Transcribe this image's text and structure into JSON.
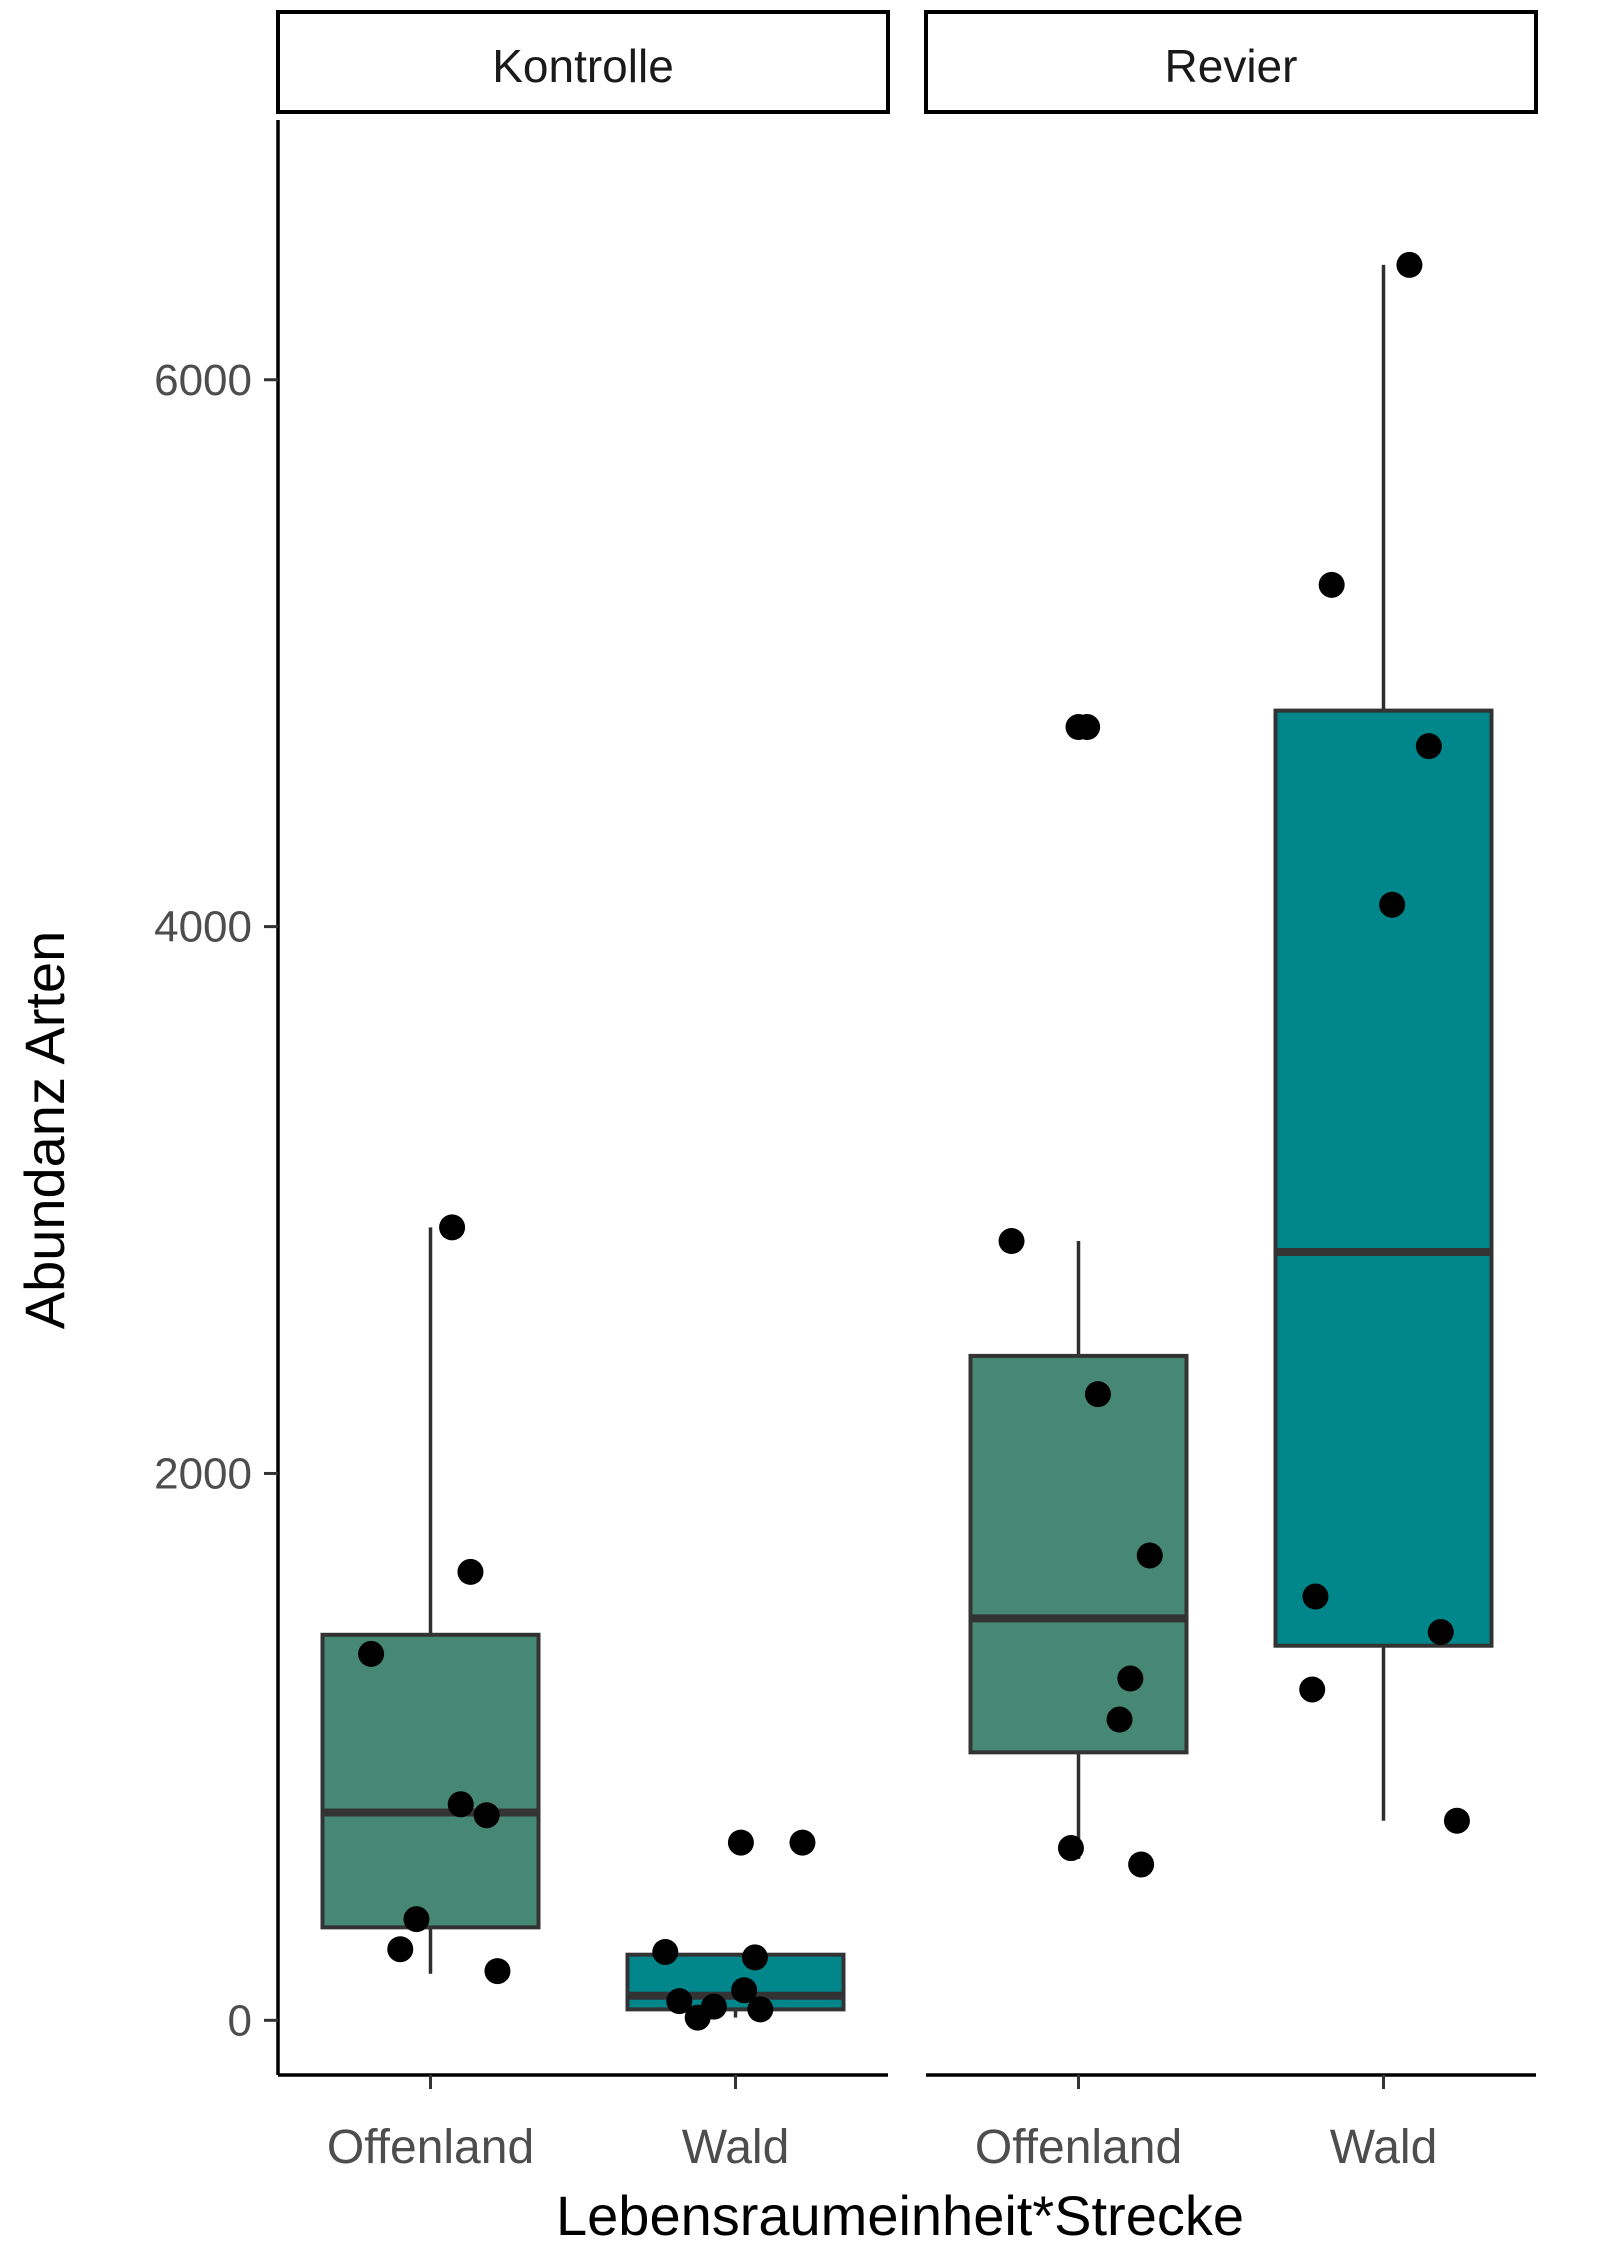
{
  "chart_data": {
    "type": "boxplot",
    "ylabel": "Abundanz Arten",
    "xlabel": "Lebensraumeinheit*Strecke",
    "ylim": [
      -200,
      6950
    ],
    "yticks": [
      0,
      2000,
      4000,
      6000
    ],
    "ytick_labels": [
      "0",
      "2000",
      "4000",
      "6000"
    ],
    "legend": "none",
    "grid": false,
    "colors": {
      "Offenland": "#468874",
      "Wald": "#00868B"
    },
    "panels": [
      {
        "name": "Kontrolle",
        "groups": [
          {
            "label": "Offenland",
            "box": {
              "q1": 340,
              "median": 760,
              "q3": 1410,
              "whisker_low": 170,
              "whisker_high": 2900
            },
            "points": [
              {
                "x": -0.55,
                "y": 1340
              },
              {
                "x": -0.28,
                "y": 260
              },
              {
                "x": -0.13,
                "y": 370
              },
              {
                "x": 0.2,
                "y": 2900
              },
              {
                "x": 0.28,
                "y": 790
              },
              {
                "x": 0.37,
                "y": 1640
              },
              {
                "x": 0.52,
                "y": 750
              },
              {
                "x": 0.62,
                "y": 180
              }
            ]
          },
          {
            "label": "Wald",
            "box": {
              "q1": 40,
              "median": 90,
              "q3": 240,
              "whisker_low": 10,
              "whisker_high": 240
            },
            "points": [
              {
                "x": -0.65,
                "y": 250
              },
              {
                "x": -0.52,
                "y": 70
              },
              {
                "x": -0.35,
                "y": 10
              },
              {
                "x": -0.2,
                "y": 50
              },
              {
                "x": 0.05,
                "y": 650
              },
              {
                "x": 0.08,
                "y": 110
              },
              {
                "x": 0.18,
                "y": 230
              },
              {
                "x": 0.23,
                "y": 40
              },
              {
                "x": 0.62,
                "y": 650
              }
            ]
          }
        ]
      },
      {
        "name": "Revier",
        "groups": [
          {
            "label": "Offenland",
            "box": {
              "q1": 980,
              "median": 1470,
              "q3": 2430,
              "whisker_low": 590,
              "whisker_high": 2850
            },
            "points": [
              {
                "x": -0.62,
                "y": 2850
              },
              {
                "x": -0.07,
                "y": 630
              },
              {
                "x": 0.0,
                "y": 4730
              },
              {
                "x": 0.08,
                "y": 4730
              },
              {
                "x": 0.18,
                "y": 2290
              },
              {
                "x": 0.48,
                "y": 1250
              },
              {
                "x": 0.38,
                "y": 1100
              },
              {
                "x": 0.58,
                "y": 570
              },
              {
                "x": 0.66,
                "y": 1700
              }
            ]
          },
          {
            "label": "Wald",
            "box": {
              "q1": 1370,
              "median": 2810,
              "q3": 4790,
              "whisker_low": 730,
              "whisker_high": 6420
            },
            "points": [
              {
                "x": -0.66,
                "y": 1210
              },
              {
                "x": -0.63,
                "y": 1550
              },
              {
                "x": -0.48,
                "y": 5250
              },
              {
                "x": 0.08,
                "y": 4080
              },
              {
                "x": 0.24,
                "y": 6420
              },
              {
                "x": 0.42,
                "y": 4660
              },
              {
                "x": 0.53,
                "y": 1420
              },
              {
                "x": 0.68,
                "y": 730
              }
            ]
          }
        ]
      }
    ]
  }
}
